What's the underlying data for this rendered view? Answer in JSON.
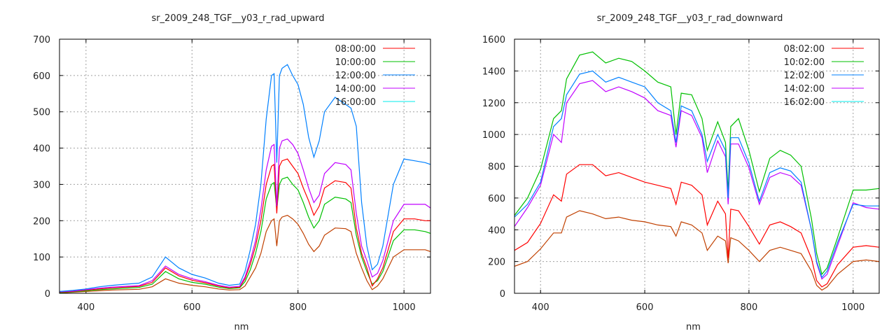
{
  "chart_data": [
    {
      "type": "line",
      "title": "sr_2009_248_TGF__y03_r_rad_upward",
      "xlabel": "nm",
      "ylabel": "",
      "xlim": [
        350,
        1050
      ],
      "ylim": [
        0,
        700
      ],
      "xticks": [
        400,
        600,
        800,
        1000
      ],
      "yticks": [
        0,
        100,
        200,
        300,
        400,
        500,
        600,
        700
      ],
      "grid": true,
      "legend": "top-right",
      "x": [
        350,
        375,
        400,
        425,
        450,
        475,
        500,
        525,
        550,
        575,
        600,
        625,
        650,
        670,
        690,
        700,
        710,
        720,
        730,
        740,
        750,
        755,
        760,
        765,
        770,
        780,
        790,
        800,
        810,
        820,
        830,
        840,
        850,
        870,
        890,
        900,
        910,
        920,
        930,
        940,
        950,
        960,
        980,
        1000,
        1020,
        1040,
        1050
      ],
      "series": [
        {
          "name": "08:00:00",
          "color": "#ff0000",
          "legend_color": "#ff0000",
          "values": [
            3,
            5,
            9,
            12,
            15,
            17,
            19,
            30,
            70,
            48,
            36,
            29,
            20,
            15,
            17,
            40,
            80,
            130,
            200,
            300,
            350,
            355,
            220,
            350,
            365,
            370,
            350,
            330,
            290,
            255,
            215,
            240,
            290,
            310,
            305,
            290,
            180,
            110,
            70,
            20,
            40,
            70,
            170,
            205,
            205,
            200,
            200
          ]
        },
        {
          "name": "10:00:00",
          "color": "#00c000",
          "legend_color": "#00c000",
          "values": [
            2,
            4,
            7,
            10,
            12,
            14,
            16,
            25,
            60,
            40,
            30,
            25,
            17,
            13,
            15,
            32,
            65,
            110,
            170,
            260,
            300,
            305,
            230,
            300,
            315,
            320,
            300,
            285,
            250,
            210,
            180,
            200,
            245,
            265,
            260,
            250,
            160,
            100,
            60,
            25,
            35,
            60,
            145,
            175,
            175,
            170,
            165
          ]
        },
        {
          "name": "12:00:00",
          "color": "#0080ff",
          "legend_color": "#0080ff",
          "values": [
            5,
            8,
            12,
            18,
            22,
            25,
            28,
            45,
            100,
            70,
            52,
            42,
            28,
            22,
            25,
            60,
            120,
            190,
            300,
            480,
            600,
            605,
            360,
            600,
            620,
            630,
            600,
            575,
            520,
            430,
            375,
            420,
            500,
            540,
            520,
            510,
            460,
            250,
            130,
            65,
            80,
            130,
            300,
            370,
            365,
            360,
            355
          ]
        },
        {
          "name": "14:00:00",
          "color": "#c000ff",
          "legend_color": "#c000ff",
          "values": [
            4,
            6,
            10,
            14,
            17,
            19,
            21,
            35,
            75,
            52,
            40,
            32,
            22,
            17,
            19,
            45,
            90,
            145,
            230,
            340,
            405,
            410,
            240,
            400,
            420,
            425,
            410,
            385,
            340,
            290,
            250,
            270,
            330,
            360,
            355,
            340,
            220,
            130,
            90,
            45,
            55,
            90,
            200,
            245,
            245,
            245,
            235
          ]
        },
        {
          "name": "16:00:00",
          "color": "#c04000",
          "legend_color": "#00eeee",
          "values": [
            1,
            3,
            5,
            7,
            9,
            10,
            11,
            18,
            40,
            28,
            22,
            18,
            12,
            9,
            10,
            20,
            45,
            70,
            110,
            170,
            200,
            205,
            130,
            200,
            210,
            215,
            205,
            190,
            165,
            135,
            115,
            130,
            160,
            180,
            178,
            170,
            110,
            70,
            35,
            10,
            20,
            40,
            100,
            120,
            120,
            120,
            115
          ]
        }
      ]
    },
    {
      "type": "line",
      "title": "sr_2009_248_TGF__y03_r_rad_downward",
      "xlabel": "nm",
      "ylabel": "",
      "xlim": [
        350,
        1050
      ],
      "ylim": [
        0,
        1600
      ],
      "xticks": [
        400,
        600,
        800,
        1000
      ],
      "yticks": [
        0,
        200,
        400,
        600,
        800,
        1000,
        1200,
        1400,
        1600
      ],
      "grid": true,
      "legend": "top-right",
      "x": [
        350,
        375,
        400,
        425,
        440,
        450,
        475,
        500,
        525,
        550,
        575,
        600,
        625,
        650,
        660,
        670,
        690,
        710,
        720,
        740,
        755,
        760,
        765,
        780,
        800,
        820,
        840,
        860,
        880,
        900,
        920,
        930,
        940,
        950,
        970,
        1000,
        1025,
        1050
      ],
      "series": [
        {
          "name": "08:02:00",
          "color": "#ff0000",
          "legend_color": "#ff0000",
          "values": [
            270,
            320,
            440,
            620,
            580,
            750,
            810,
            810,
            740,
            760,
            730,
            700,
            680,
            660,
            560,
            700,
            680,
            620,
            430,
            580,
            500,
            220,
            530,
            520,
            420,
            310,
            430,
            450,
            420,
            380,
            220,
            80,
            40,
            60,
            180,
            290,
            300,
            290
          ]
        },
        {
          "name": "10:02:00",
          "color": "#00c000",
          "legend_color": "#00c000",
          "values": [
            490,
            600,
            780,
            1100,
            1150,
            1350,
            1500,
            1520,
            1450,
            1480,
            1460,
            1400,
            1330,
            1300,
            1000,
            1260,
            1250,
            1100,
            900,
            1080,
            950,
            640,
            1050,
            1100,
            900,
            640,
            850,
            900,
            870,
            800,
            470,
            250,
            120,
            160,
            350,
            650,
            650,
            660
          ]
        },
        {
          "name": "12:02:00",
          "color": "#0080ff",
          "legend_color": "#0080ff",
          "values": [
            480,
            560,
            700,
            1050,
            1100,
            1250,
            1380,
            1400,
            1330,
            1360,
            1330,
            1300,
            1200,
            1150,
            950,
            1180,
            1150,
            1000,
            830,
            1000,
            900,
            600,
            980,
            980,
            820,
            580,
            760,
            790,
            770,
            700,
            400,
            200,
            100,
            140,
            320,
            560,
            550,
            550
          ]
        },
        {
          "name": "14:02:00",
          "color": "#c000ff",
          "legend_color": "#c000ff",
          "values": [
            420,
            540,
            680,
            1000,
            950,
            1200,
            1320,
            1340,
            1270,
            1300,
            1270,
            1230,
            1150,
            1120,
            920,
            1150,
            1120,
            980,
            760,
            960,
            860,
            560,
            940,
            940,
            790,
            560,
            730,
            760,
            740,
            680,
            400,
            190,
            90,
            120,
            300,
            570,
            540,
            530
          ]
        },
        {
          "name": "16:02:00",
          "color": "#c04000",
          "legend_color": "#00eeee",
          "values": [
            170,
            200,
            280,
            380,
            380,
            480,
            520,
            500,
            470,
            480,
            460,
            450,
            430,
            420,
            360,
            450,
            430,
            380,
            270,
            360,
            330,
            190,
            350,
            330,
            270,
            200,
            270,
            290,
            270,
            250,
            140,
            50,
            20,
            40,
            120,
            200,
            210,
            200
          ]
        }
      ]
    }
  ]
}
